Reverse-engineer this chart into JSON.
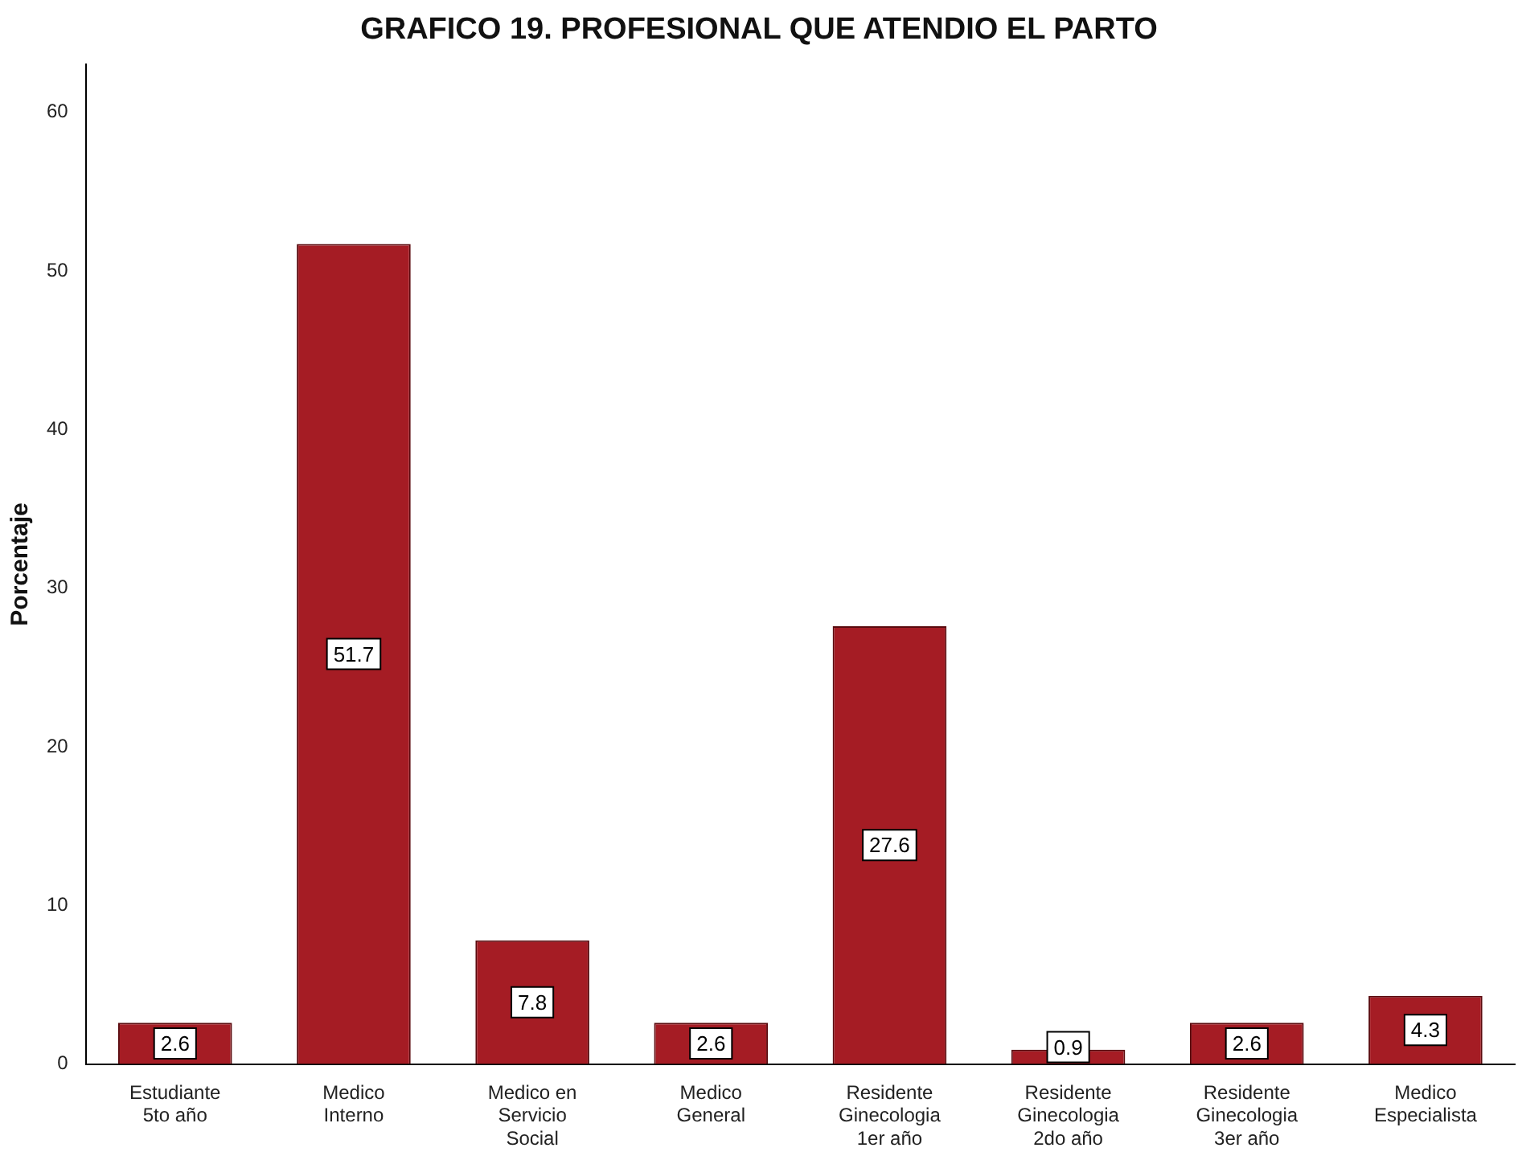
{
  "chart_data": {
    "type": "bar",
    "title": "GRAFICO 19. PROFESIONAL QUE ATENDIO EL PARTO",
    "ylabel": "Porcentaje",
    "categories": [
      "Estudiante 5to año",
      "Medico Interno",
      "Medico en Servicio Social",
      "Medico General",
      "Residente Ginecologia 1er año",
      "Residente Ginecologia 2do año",
      "Residente Ginecologia 3er año",
      "Medico Especialista"
    ],
    "values": [
      2.6,
      51.7,
      7.8,
      2.6,
      27.6,
      0.9,
      2.6,
      4.3
    ],
    "color": "#a51c24",
    "ylim": [
      0,
      63
    ],
    "yticks": [
      0,
      10,
      20,
      30,
      40,
      50,
      60
    ],
    "grid": false,
    "legend": false,
    "data_labels": true
  }
}
